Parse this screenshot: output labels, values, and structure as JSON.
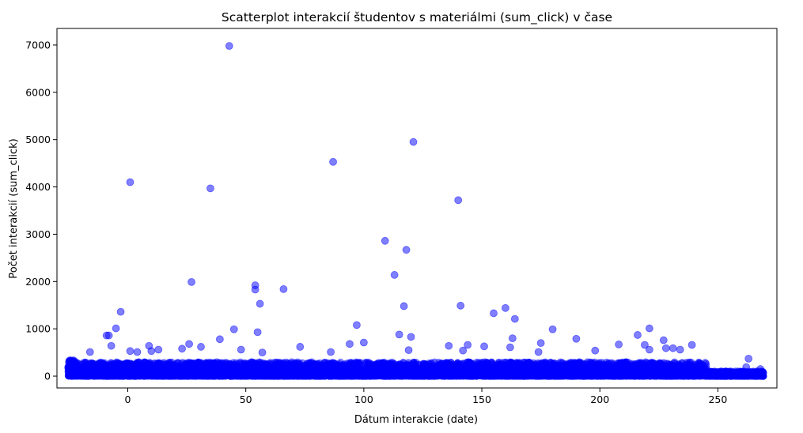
{
  "chart_data": {
    "type": "scatter",
    "title": "Scatterplot interakcií študentov s materiálmi (sum_click) v čase",
    "xlabel": "Dátum interakcie (date)",
    "ylabel": "Počet interakcií (sum_click)",
    "xlim": [
      -30,
      275
    ],
    "ylim": [
      -250,
      7350
    ],
    "xticks": [
      0,
      50,
      100,
      150,
      200,
      250
    ],
    "yticks": [
      0,
      1000,
      2000,
      3000,
      4000,
      5000,
      6000,
      7000
    ],
    "grid": false,
    "legend": "none",
    "marker_color": "#0000ff",
    "marker_alpha": 0.5,
    "dense_band": {
      "x_range": [
        -25,
        269
      ],
      "y_range": [
        0,
        300
      ]
    },
    "points": [
      {
        "x": 43,
        "y": 6980
      },
      {
        "x": 121,
        "y": 4950
      },
      {
        "x": 87,
        "y": 4530
      },
      {
        "x": 1,
        "y": 4100
      },
      {
        "x": 35,
        "y": 3970
      },
      {
        "x": 140,
        "y": 3720
      },
      {
        "x": 109,
        "y": 2860
      },
      {
        "x": 118,
        "y": 2670
      },
      {
        "x": 113,
        "y": 2140
      },
      {
        "x": 27,
        "y": 1990
      },
      {
        "x": 54,
        "y": 1920
      },
      {
        "x": 54,
        "y": 1830
      },
      {
        "x": 66,
        "y": 1840
      },
      {
        "x": 56,
        "y": 1530
      },
      {
        "x": 141,
        "y": 1490
      },
      {
        "x": 117,
        "y": 1480
      },
      {
        "x": 160,
        "y": 1440
      },
      {
        "x": -3,
        "y": 1360
      },
      {
        "x": 155,
        "y": 1330
      },
      {
        "x": 164,
        "y": 1210
      },
      {
        "x": 97,
        "y": 1080
      },
      {
        "x": -5,
        "y": 1010
      },
      {
        "x": 45,
        "y": 990
      },
      {
        "x": 180,
        "y": 990
      },
      {
        "x": 221,
        "y": 1010
      },
      {
        "x": 55,
        "y": 930
      },
      {
        "x": 115,
        "y": 880
      },
      {
        "x": -9,
        "y": 860
      },
      {
        "x": -8,
        "y": 860
      },
      {
        "x": 216,
        "y": 870
      },
      {
        "x": 120,
        "y": 830
      },
      {
        "x": 163,
        "y": 800
      },
      {
        "x": 39,
        "y": 780
      },
      {
        "x": 190,
        "y": 790
      },
      {
        "x": 227,
        "y": 760
      },
      {
        "x": 100,
        "y": 710
      },
      {
        "x": 175,
        "y": 700
      },
      {
        "x": 26,
        "y": 680
      },
      {
        "x": 94,
        "y": 680
      },
      {
        "x": 208,
        "y": 670
      },
      {
        "x": 219,
        "y": 660
      },
      {
        "x": 239,
        "y": 660
      },
      {
        "x": 9,
        "y": 640
      },
      {
        "x": -7,
        "y": 640
      },
      {
        "x": 31,
        "y": 620
      },
      {
        "x": 73,
        "y": 620
      },
      {
        "x": 151,
        "y": 630
      },
      {
        "x": 162,
        "y": 610
      },
      {
        "x": 144,
        "y": 660
      },
      {
        "x": 228,
        "y": 590
      },
      {
        "x": 231,
        "y": 590
      },
      {
        "x": 23,
        "y": 580
      },
      {
        "x": 48,
        "y": 560
      },
      {
        "x": 13,
        "y": 560
      },
      {
        "x": 136,
        "y": 640
      },
      {
        "x": 119,
        "y": 550
      },
      {
        "x": 142,
        "y": 540
      },
      {
        "x": 1,
        "y": 530
      },
      {
        "x": 10,
        "y": 530
      },
      {
        "x": 198,
        "y": 540
      },
      {
        "x": 221,
        "y": 560
      },
      {
        "x": 234,
        "y": 560
      },
      {
        "x": 4,
        "y": 510
      },
      {
        "x": -16,
        "y": 510
      },
      {
        "x": 57,
        "y": 500
      },
      {
        "x": 86,
        "y": 510
      },
      {
        "x": 174,
        "y": 510
      },
      {
        "x": 263,
        "y": 370
      },
      {
        "x": 262,
        "y": 190
      },
      {
        "x": 268,
        "y": 150
      }
    ]
  }
}
